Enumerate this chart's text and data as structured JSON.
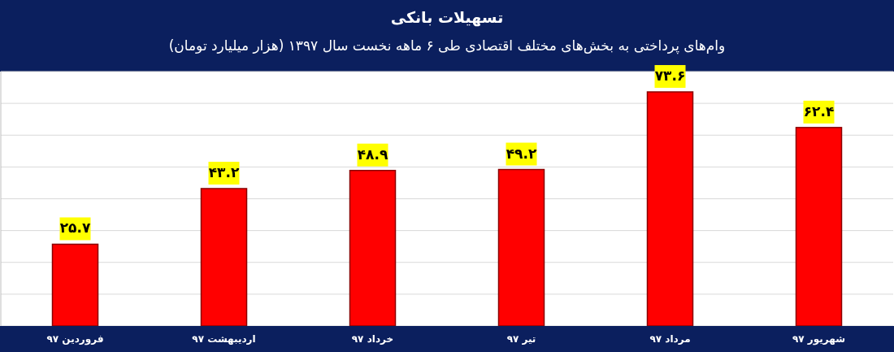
{
  "chart_data": {
    "type": "bar",
    "title": "تسهیلات بانکی",
    "subtitle": "وام‌های پرداختی به بخش‌های مختلف اقتصادی طی ۶ ماهه نخست سال ۱۳۹۷ (هزار میلیارد تومان)",
    "categories": [
      "فروردین ۹۷",
      "اردیبهشت ۹۷",
      "خرداد ۹۷",
      "تیر ۹۷",
      "مرداد ۹۷",
      "شهریور ۹۷"
    ],
    "values": [
      25.7,
      43.2,
      48.9,
      49.2,
      73.6,
      62.4
    ],
    "value_labels": [
      "۲۵.۷",
      "۴۳.۲",
      "۴۸.۹",
      "۴۹.۲",
      "۷۳.۶",
      "۶۲.۴"
    ],
    "color": "#ff0000",
    "ylim": [
      0,
      80
    ],
    "yticks": [
      {
        "value": 0,
        "label": null
      },
      {
        "value": 10,
        "label": null
      },
      {
        "value": 20,
        "label": null
      },
      {
        "value": 30,
        "label": null
      },
      {
        "value": 40,
        "label": null
      },
      {
        "value": 50,
        "label": null
      },
      {
        "value": 60,
        "label": null
      },
      {
        "value": 70,
        "label": null
      },
      {
        "value": 80,
        "label": null
      }
    ],
    "grid": "y",
    "tick_labels": "x"
  }
}
